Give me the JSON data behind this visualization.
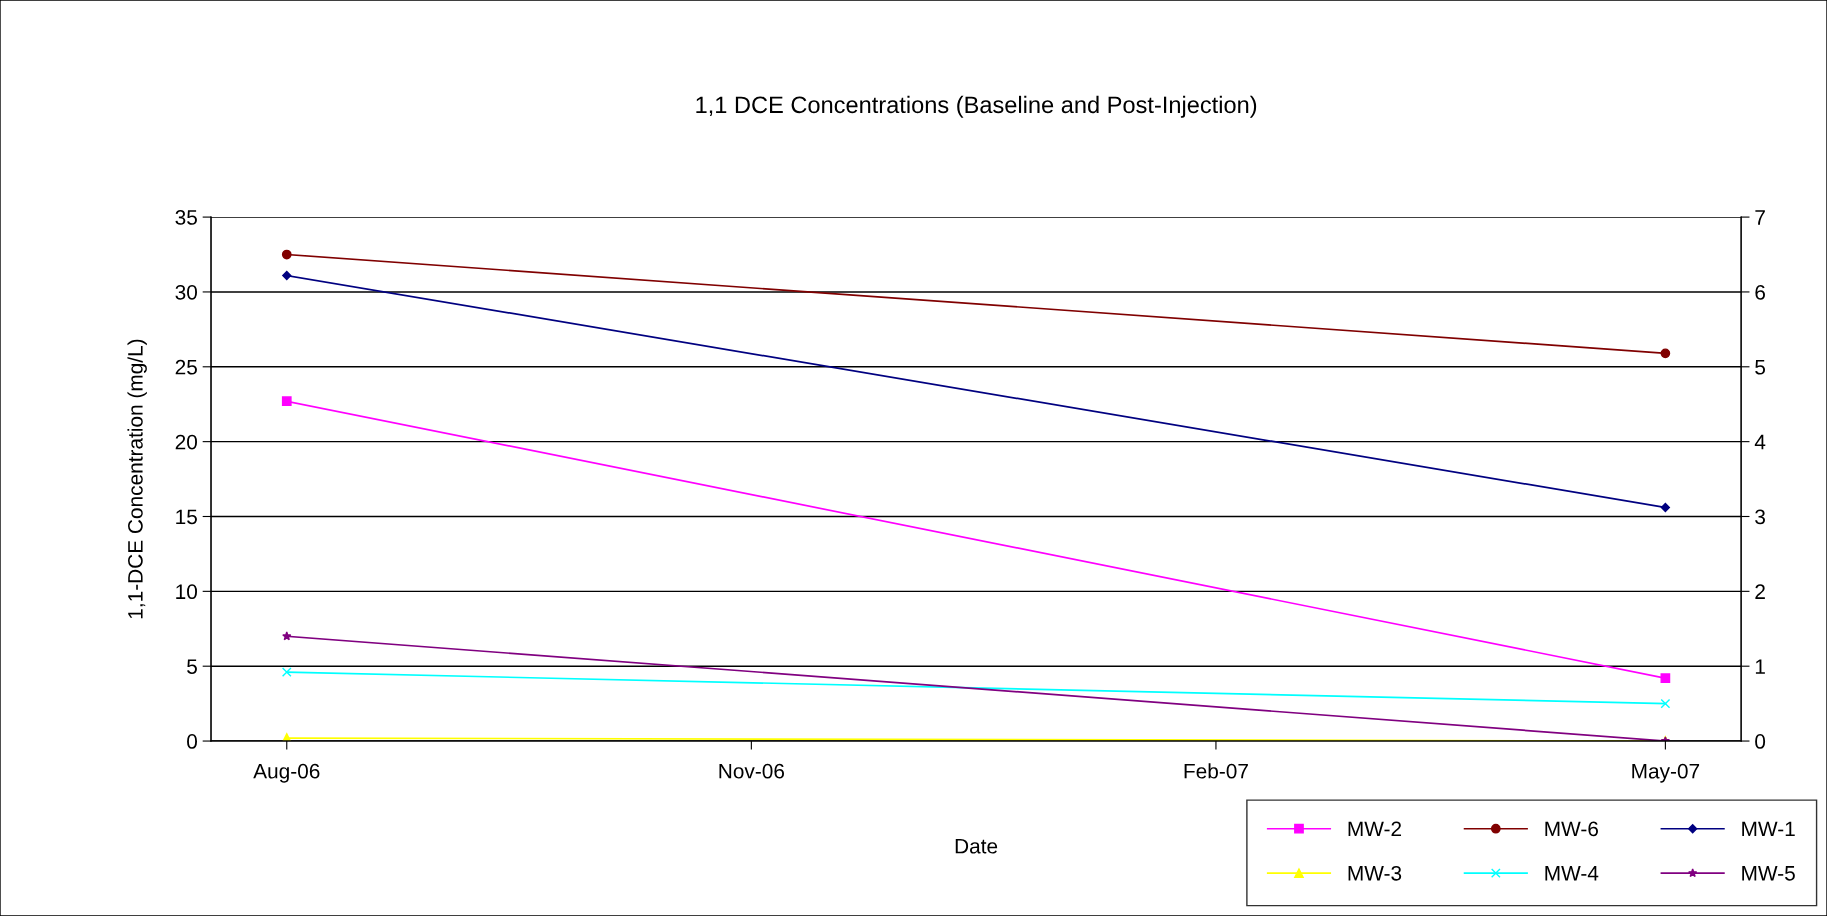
{
  "chart_data": {
    "type": "line",
    "title": "1,1 DCE Concentrations (Baseline and Post-Injection)",
    "xlabel": "Date",
    "ylabel": "1,1-DCE Concentration (mg/L)",
    "x": [
      "2006-08-01",
      "2007-05-01"
    ],
    "xlim": [
      "2006-07-17",
      "2007-05-16"
    ],
    "xticks": [
      {
        "value": "2006-08-01",
        "label": "Aug-06"
      },
      {
        "value": "2006-11-01",
        "label": "Nov-06"
      },
      {
        "value": "2007-02-01",
        "label": "Feb-07"
      },
      {
        "value": "2007-05-01",
        "label": "May-07"
      }
    ],
    "ylim": [
      0,
      35
    ],
    "yticks": [
      0,
      5,
      10,
      15,
      20,
      25,
      30,
      35
    ],
    "y2lim": [
      0,
      7
    ],
    "y2ticks": [
      0,
      1,
      2,
      3,
      4,
      5,
      6,
      7
    ],
    "grid": "y",
    "legend": "bottom right",
    "line_style": "solid",
    "series": [
      {
        "name": "MW-2",
        "color": "#ff00ff",
        "marker": "square",
        "values": [
          22.7,
          4.2
        ]
      },
      {
        "name": "MW-6",
        "color": "#800000",
        "marker": "circle",
        "values": [
          32.5,
          25.9
        ]
      },
      {
        "name": "MW-1",
        "color": "#000080",
        "marker": "diamond",
        "values": [
          31.1,
          15.6
        ]
      },
      {
        "name": "MW-3",
        "color": "#ffff00",
        "marker": "triangle",
        "values": [
          0.2,
          0
        ]
      },
      {
        "name": "MW-4",
        "color": "#00ffff",
        "marker": "cross",
        "values": [
          4.6,
          2.5
        ]
      },
      {
        "name": "MW-5",
        "color": "#800080",
        "marker": "star",
        "values": [
          7.0,
          0
        ]
      }
    ]
  }
}
